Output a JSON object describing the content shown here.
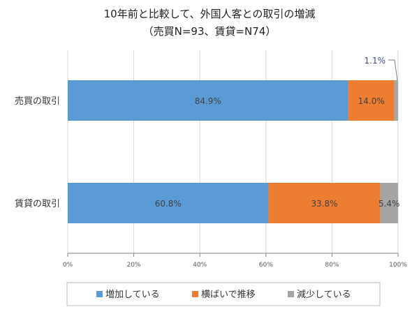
{
  "chart_data": {
    "type": "bar",
    "stacked": true,
    "orientation": "horizontal",
    "title": "10年前と比較して、外国人客との取引の増減",
    "subtitle": "（売買N=93、賃貸=N74）",
    "categories": [
      "売買の取引",
      "賃貸の取引"
    ],
    "series": [
      {
        "name": "増加している",
        "values": [
          84.9,
          60.8
        ],
        "labels": [
          "84.9%",
          "60.8%"
        ],
        "color": "#5B9BD5"
      },
      {
        "name": "横ばいで推移",
        "values": [
          14.0,
          33.8
        ],
        "labels": [
          "14.0%",
          "33.8%"
        ],
        "color": "#ED7D31"
      },
      {
        "name": "減少している",
        "values": [
          1.1,
          5.4
        ],
        "labels": [
          "1.1%",
          "5.4%"
        ],
        "color": "#A5A5A5"
      }
    ],
    "xlim": [
      0,
      100
    ],
    "xticks": [
      "0%",
      "20%",
      "40%",
      "60%",
      "80%",
      "100%"
    ],
    "grid": true,
    "legend": "bottom"
  }
}
